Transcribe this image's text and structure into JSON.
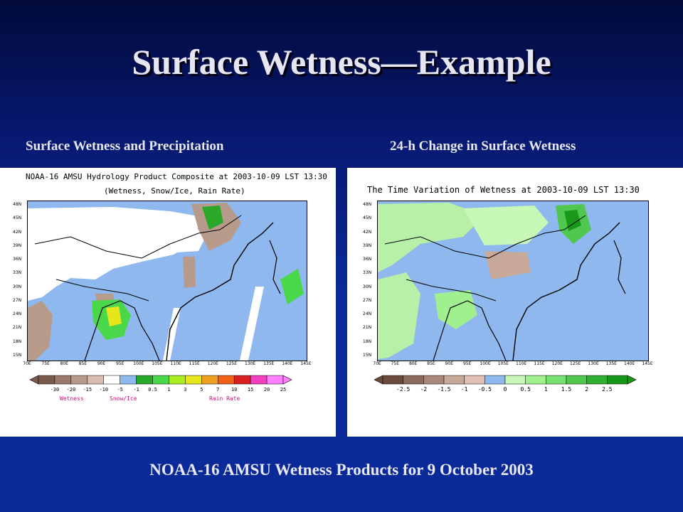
{
  "slide": {
    "title": "Surface Wetness—Example",
    "footer": "NOAA-16 AMSU Wetness Products for 9 October 2003"
  },
  "left_panel": {
    "caption": "Surface Wetness and Precipitation",
    "header_line1": "NOAA-16 AMSU Hydrology Product Composite at 2003-10-09 LST 13:30",
    "header_line2": "(Wetness, Snow/Ice,  Rain Rate)",
    "lat_ticks": [
      "48N",
      "45N",
      "42N",
      "39N",
      "36N",
      "33N",
      "30N",
      "27N",
      "24N",
      "21N",
      "18N",
      "15N"
    ],
    "lon_ticks": [
      "70E",
      "75E",
      "80E",
      "85E",
      "90E",
      "95E",
      "100E",
      "105E",
      "110E",
      "115E",
      "120E",
      "125E",
      "130E",
      "135E",
      "140E",
      "145E"
    ],
    "legend_ticks": [
      "-30",
      "-20",
      "-15",
      "-10",
      "-5",
      "-1",
      "0.5",
      "1",
      "3",
      "5",
      "7",
      "10",
      "15",
      "20",
      "25"
    ],
    "legend_colors": [
      "#7a5a4a",
      "#9a7a6a",
      "#b89a8a",
      "#d8bcb0",
      "#ffffff",
      "#8fb8ee",
      "#2aa82a",
      "#4ad84a",
      "#aaee22",
      "#e6e61a",
      "#f0a020",
      "#f06018",
      "#d82020",
      "#f040c0",
      "#ff80ff"
    ],
    "legend_labels": [
      "Wetness",
      "Snow/Ice",
      "Rain Rate"
    ]
  },
  "right_panel": {
    "caption": "24-h Change in Surface Wetness",
    "header_line1": "The Time Variation of Wetness at 2003-10-09 LST 13:30",
    "lat_ticks": [
      "48N",
      "45N",
      "42N",
      "39N",
      "36N",
      "33N",
      "30N",
      "27N",
      "24N",
      "21N",
      "18N",
      "15N"
    ],
    "lon_ticks": [
      "70E",
      "75E",
      "80E",
      "85E",
      "90E",
      "95E",
      "100E",
      "105E",
      "110E",
      "115E",
      "120E",
      "125E",
      "130E",
      "135E",
      "140E",
      "145E"
    ],
    "legend_ticks": [
      "-2.5",
      "-2",
      "-1.5",
      "-1",
      "-0.5",
      "0",
      "0.5",
      "1",
      "1.5",
      "2",
      "2.5"
    ],
    "legend_colors": [
      "#6a4a3a",
      "#8a6a5a",
      "#a88878",
      "#c8a898",
      "#e0c0b4",
      "#8fb8ee",
      "#c8f8b8",
      "#a0f090",
      "#78e070",
      "#50c850",
      "#30b030",
      "#189818"
    ]
  },
  "colors": {
    "ocean": "#8fb8ee",
    "land_white": "#ffffff",
    "wet_brown": "#b89a8a",
    "rain_green": "#4ad84a",
    "rain_yellow": "#e6e61a",
    "change_green": "#b8f0a8"
  }
}
